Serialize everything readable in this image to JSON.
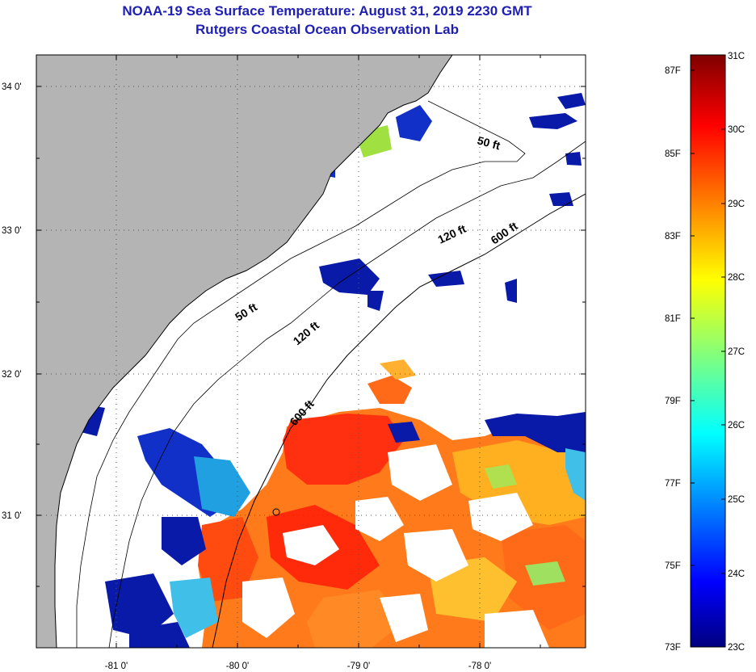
{
  "title": {
    "line1": "NOAA-19 Sea Surface Temperature:  August 31, 2019 2230 GMT",
    "line2": "Rutgers Coastal Ocean Observation Lab"
  },
  "map": {
    "lat_labels": [
      "34 0'",
      "33 0'",
      "32 0'",
      "31 0'"
    ],
    "lon_labels": [
      "-81 0'",
      "-80 0'",
      "-79 0'",
      "-78 0'"
    ],
    "isobath_labels": [
      "50 ft",
      "120 ft",
      "600 ft",
      "50 ft",
      "120 ft",
      "600 ft"
    ],
    "colors": {
      "land": "#b4b4b4",
      "cloud": "#ffffff",
      "title": "#1f1fb4"
    }
  },
  "colorbar": {
    "fahrenheit_labels": [
      "87F",
      "85F",
      "83F",
      "81F",
      "79F",
      "77F",
      "75F",
      "73F"
    ],
    "celsius_labels": [
      "31C",
      "30C",
      "29C",
      "28C",
      "27C",
      "26C",
      "25C",
      "24C",
      "23C"
    ],
    "colormap": "jet"
  }
}
